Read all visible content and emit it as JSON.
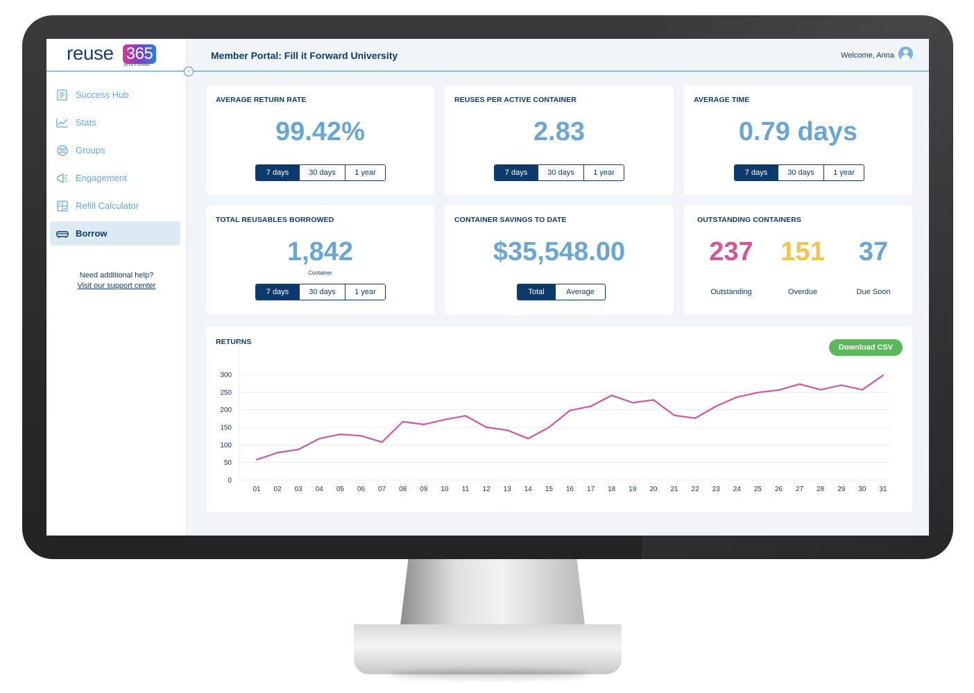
{
  "brand": {
    "logo_word": "reuse",
    "logo_num": "365",
    "logo_sub": "by Fill it Forward"
  },
  "header": {
    "title": "Member Portal: Fill it Forward University",
    "welcome": "Welcome, Anna"
  },
  "sidebar": {
    "items": [
      {
        "label": "Success Hub",
        "icon": "success-hub-icon",
        "active": false
      },
      {
        "label": "Stats",
        "icon": "stats-icon",
        "active": false
      },
      {
        "label": "Groups",
        "icon": "groups-icon",
        "active": false
      },
      {
        "label": "Engagement",
        "icon": "engagement-icon",
        "active": false
      },
      {
        "label": "Refill Calculator",
        "icon": "refill-calculator-icon",
        "active": false
      },
      {
        "label": "Borrow",
        "icon": "borrow-icon",
        "active": true
      }
    ],
    "help_text": "Need additional help?",
    "help_link": "Visit our support center"
  },
  "ranges": {
    "d7": "7 days",
    "d30": "30 days",
    "y1": "1 year",
    "total": "Total",
    "average": "Average"
  },
  "cards": {
    "return_rate": {
      "title": "AVERAGE RETURN RATE",
      "value": "99.42%"
    },
    "reuses": {
      "title": "REUSES PER ACTIVE CONTAINER",
      "value": "2.83"
    },
    "avg_time": {
      "title": "AVERAGE TIME",
      "value": "0.79 days"
    },
    "borrowed": {
      "title": "TOTAL REUSABLES BORROWED",
      "value": "1,842",
      "unit": "Container"
    },
    "savings": {
      "title": "CONTAINER SAVINGS TO DATE",
      "value": "$35,548.00"
    },
    "outstanding": {
      "title": "OUTSTANDING CONTAINERS",
      "outstanding": "237",
      "outstanding_label": "Outstanding",
      "overdue": "151",
      "overdue_label": "Overdue",
      "due_soon": "37",
      "due_soon_label": "Due Soon"
    }
  },
  "colors": {
    "navy": "#0d3a6b",
    "light_blue": "#6aa6d4",
    "pink": "#d4559a",
    "yellow": "#f5c24a",
    "green": "#5cb85c"
  },
  "returns": {
    "title": "RETURNS",
    "download_label": "Download CSV"
  },
  "chart_data": {
    "type": "line",
    "title": "RETURNS",
    "x": [
      "01",
      "02",
      "03",
      "04",
      "05",
      "06",
      "07",
      "08",
      "09",
      "10",
      "11",
      "12",
      "13",
      "14",
      "15",
      "16",
      "17",
      "18",
      "19",
      "20",
      "21",
      "22",
      "23",
      "24",
      "25",
      "26",
      "27",
      "28",
      "29",
      "30",
      "31"
    ],
    "series": [
      {
        "values": [
          58,
          78,
          87,
          118,
          130,
          126,
          108,
          166,
          158,
          172,
          183,
          150,
          142,
          118,
          150,
          198,
          210,
          241,
          220,
          228,
          184,
          176,
          210,
          236,
          249,
          256,
          273,
          257,
          270,
          257,
          298
        ],
        "color": "#d4559a"
      }
    ],
    "y_ticks": [
      0,
      50,
      100,
      150,
      200,
      250,
      300
    ],
    "ylim": [
      0,
      300
    ],
    "grid": true,
    "legend": "none"
  }
}
